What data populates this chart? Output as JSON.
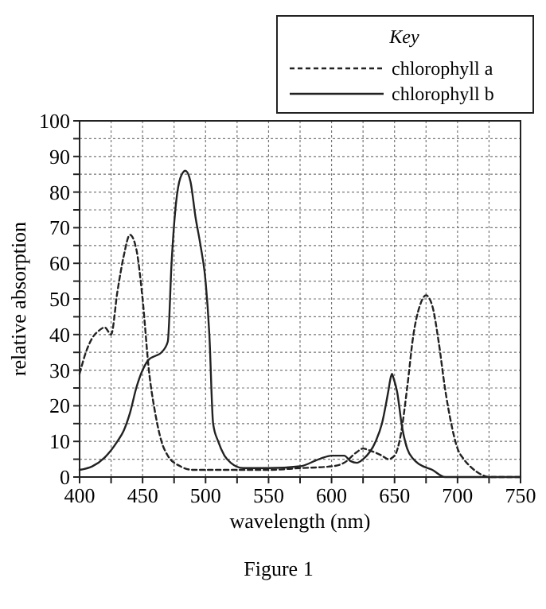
{
  "chart_data": {
    "type": "line",
    "xlabel": "wavelength (nm)",
    "ylabel": "relative absorption",
    "legend_title": "Key",
    "legend": "top right",
    "grid": true,
    "xlim": [
      400,
      750
    ],
    "ylim": [
      0,
      100
    ],
    "xticks": [
      400,
      {
        "value": 425,
        "label": null
      },
      450,
      {
        "value": 475,
        "label": null
      },
      500,
      {
        "value": 525,
        "label": null
      },
      550,
      {
        "value": 575,
        "label": null
      },
      600,
      {
        "value": 625,
        "label": null
      },
      650,
      {
        "value": 675,
        "label": null
      },
      700,
      {
        "value": 725,
        "label": null
      },
      750
    ],
    "yticks": [
      0,
      {
        "value": 5,
        "label": null
      },
      10,
      {
        "value": 15,
        "label": null
      },
      20,
      {
        "value": 25,
        "label": null
      },
      30,
      {
        "value": 35,
        "label": null
      },
      40,
      {
        "value": 45,
        "label": null
      },
      50,
      {
        "value": 55,
        "label": null
      },
      60,
      {
        "value": 65,
        "label": null
      },
      70,
      {
        "value": 75,
        "label": null
      },
      80,
      {
        "value": 85,
        "label": null
      },
      90,
      {
        "value": 95,
        "label": null
      },
      100
    ],
    "annotations": [
      "Figure 1"
    ],
    "series": [
      {
        "name": "chlorophyll a",
        "color": "#222222",
        "line_style": "dashed",
        "x": [
          400,
          405,
          410,
          415,
          420,
          425,
          430,
          435,
          440,
          445,
          450,
          455,
          460,
          465,
          470,
          480,
          490,
          500,
          525,
          550,
          575,
          600,
          610,
          620,
          625,
          630,
          640,
          645,
          650,
          655,
          660,
          665,
          670,
          675,
          680,
          685,
          690,
          695,
          700,
          705,
          710,
          715,
          720,
          725,
          750
        ],
        "values": [
          29,
          35,
          39,
          41,
          42,
          40,
          52,
          62,
          68,
          64,
          50,
          30,
          18,
          10,
          6,
          3,
          2,
          2,
          2,
          2,
          2.5,
          3,
          4,
          7,
          8,
          7.5,
          6,
          5,
          6,
          12,
          25,
          40,
          48,
          51,
          48,
          38,
          25,
          15,
          8,
          5,
          3,
          1.5,
          0.5,
          0,
          0
        ]
      },
      {
        "name": "chlorophyll b",
        "color": "#222222",
        "line_style": "solid",
        "x": [
          400,
          410,
          420,
          430,
          435,
          440,
          445,
          450,
          455,
          460,
          465,
          470,
          473,
          476,
          480,
          484,
          488,
          492,
          496,
          500,
          503,
          506,
          510,
          515,
          520,
          530,
          550,
          575,
          590,
          600,
          610,
          615,
          620,
          625,
          635,
          640,
          645,
          647,
          648,
          649,
          652,
          656,
          660,
          665,
          670,
          680,
          690,
          750
        ],
        "values": [
          2,
          3,
          5.5,
          10,
          13,
          18,
          25,
          30,
          33,
          34,
          35,
          38,
          60,
          75,
          84,
          86,
          83,
          73,
          65,
          55,
          40,
          15,
          10,
          6,
          4,
          2.5,
          2.5,
          3,
          5,
          6,
          6,
          4.5,
          4,
          5,
          10,
          15,
          24,
          28,
          29,
          28,
          24,
          14,
          8,
          5,
          3.5,
          2,
          0,
          0
        ]
      }
    ]
  }
}
